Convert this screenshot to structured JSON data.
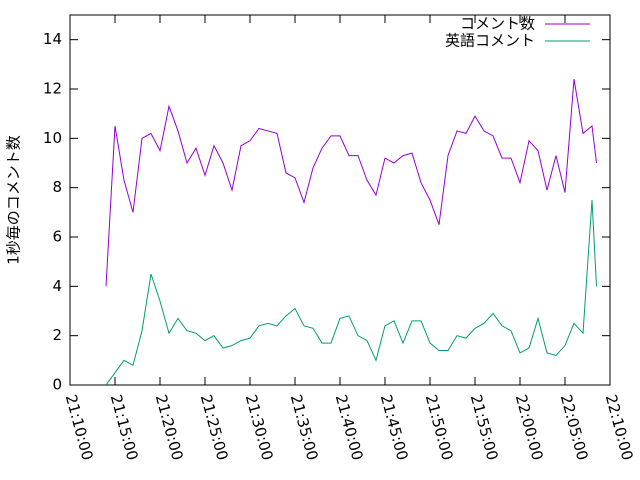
{
  "chart_data": {
    "type": "line",
    "ylabel": "1秒毎のコメント数",
    "x": [
      "21:14:00",
      "21:15:00",
      "21:16:00",
      "21:17:00",
      "21:18:00",
      "21:19:00",
      "21:20:00",
      "21:21:00",
      "21:22:00",
      "21:23:00",
      "21:24:00",
      "21:25:00",
      "21:26:00",
      "21:27:00",
      "21:28:00",
      "21:29:00",
      "21:30:00",
      "21:31:00",
      "21:32:00",
      "21:33:00",
      "21:34:00",
      "21:35:00",
      "21:36:00",
      "21:37:00",
      "21:38:00",
      "21:39:00",
      "21:40:00",
      "21:41:00",
      "21:42:00",
      "21:43:00",
      "21:44:00",
      "21:45:00",
      "21:46:00",
      "21:47:00",
      "21:48:00",
      "21:49:00",
      "21:50:00",
      "21:51:00",
      "21:52:00",
      "21:53:00",
      "21:54:00",
      "21:55:00",
      "21:56:00",
      "21:57:00",
      "21:58:00",
      "21:59:00",
      "22:00:00",
      "22:01:00",
      "22:02:00",
      "22:03:00",
      "22:04:00",
      "22:05:00",
      "22:06:00",
      "22:07:00",
      "22:08:00",
      "22:08:30"
    ],
    "series": [
      {
        "name": "コメント数",
        "color": "#9400d3",
        "values": [
          4,
          10.5,
          8.3,
          7,
          10,
          10.2,
          9.5,
          11.3,
          10.3,
          9,
          9.6,
          8.5,
          9.7,
          9,
          7.9,
          9.7,
          9.9,
          10.4,
          10.3,
          10.2,
          8.6,
          8.4,
          7.4,
          8.8,
          9.6,
          10.1,
          10.1,
          9.3,
          9.3,
          8.3,
          7.7,
          9.2,
          9,
          9.3,
          9.4,
          8.2,
          7.5,
          6.5,
          9.3,
          10.3,
          10.2,
          10.9,
          10.3,
          10.1,
          9.2,
          9.2,
          8.2,
          9.9,
          9.5,
          7.9,
          9.3,
          7.8,
          12.4,
          10.2,
          10.5,
          9
        ]
      },
      {
        "name": "英語コメント",
        "color": "#009e73",
        "values": [
          0,
          0.5,
          1,
          0.8,
          2.2,
          4.5,
          3.4,
          2.1,
          2.7,
          2.2,
          2.1,
          1.8,
          2,
          1.5,
          1.6,
          1.8,
          1.9,
          2.4,
          2.5,
          2.4,
          2.8,
          3.1,
          2.4,
          2.3,
          1.7,
          1.7,
          2.7,
          2.8,
          2,
          1.8,
          1,
          2.4,
          2.6,
          1.7,
          2.6,
          2.6,
          1.7,
          1.4,
          1.4,
          2,
          1.9,
          2.3,
          2.5,
          2.9,
          2.4,
          2.2,
          1.3,
          1.5,
          2.7,
          1.3,
          1.2,
          1.6,
          2.5,
          2.1,
          7.5,
          4
        ]
      }
    ],
    "xlim": [
      "21:10:00",
      "22:10:00"
    ],
    "xticks": [
      "21:10:00",
      "21:15:00",
      "21:20:00",
      "21:25:00",
      "21:30:00",
      "21:35:00",
      "21:40:00",
      "21:45:00",
      "21:50:00",
      "21:55:00",
      "22:00:00",
      "22:05:00",
      "22:10:00"
    ],
    "ylim": [
      0,
      15
    ],
    "yticks": [
      0,
      2,
      4,
      6,
      8,
      10,
      12,
      14
    ],
    "legend": "top-right"
  }
}
